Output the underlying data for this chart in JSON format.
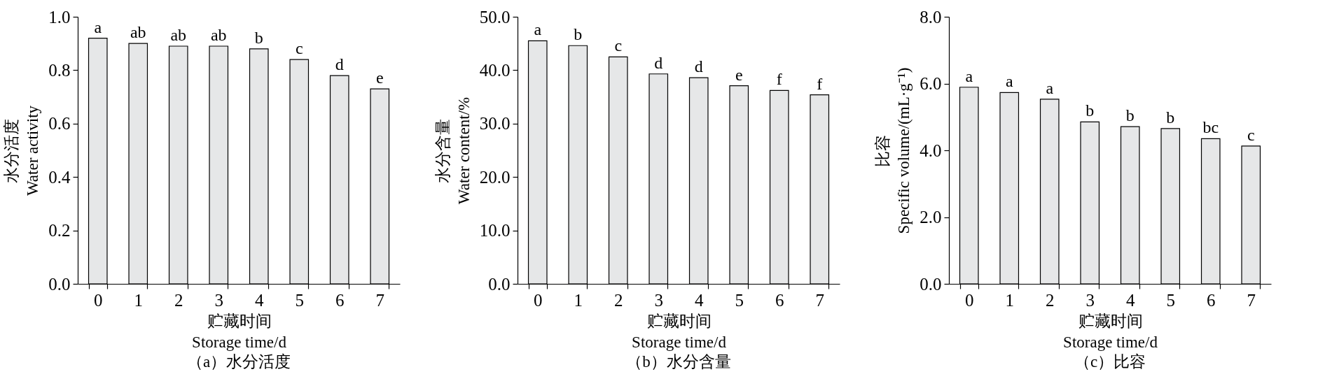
{
  "chart_data": [
    {
      "type": "bar",
      "title": "（a）水分活度",
      "xlabel": "贮藏时间\nStorage time/d",
      "ylabel": "水分活度\nWater activity",
      "categories": [
        "0",
        "1",
        "2",
        "3",
        "4",
        "5",
        "6",
        "7"
      ],
      "values": [
        0.92,
        0.9,
        0.89,
        0.89,
        0.88,
        0.84,
        0.78,
        0.73
      ],
      "value_labels": [
        "a",
        "ab",
        "ab",
        "ab",
        "b",
        "c",
        "d",
        "e"
      ],
      "color": "#e6e7e8",
      "ylim": [
        0,
        1.0
      ],
      "yticks": [
        {
          "value": 0,
          "label": "0.0"
        },
        {
          "value": 0.2,
          "label": "0.2"
        },
        {
          "value": 0.4,
          "label": "0.4"
        },
        {
          "value": 0.6,
          "label": "0.6"
        },
        {
          "value": 0.8,
          "label": "0.8"
        },
        {
          "value": 1.0,
          "label": "1.0"
        }
      ],
      "grid": false
    },
    {
      "type": "bar",
      "title": "（b）水分含量",
      "xlabel": "贮藏时间\nStorage time/d",
      "ylabel": "水分含量\nWater content/%",
      "categories": [
        "0",
        "1",
        "2",
        "3",
        "4",
        "5",
        "6",
        "7"
      ],
      "values": [
        45.5,
        44.6,
        42.5,
        39.3,
        38.6,
        37.1,
        36.2,
        35.4
      ],
      "value_labels": [
        "a",
        "b",
        "c",
        "d",
        "d",
        "e",
        "f",
        "f"
      ],
      "color": "#e6e7e8",
      "ylim": [
        0,
        50
      ],
      "yticks": [
        {
          "value": 0,
          "label": "0.0"
        },
        {
          "value": 10,
          "label": "10.0"
        },
        {
          "value": 20,
          "label": "20.0"
        },
        {
          "value": 30,
          "label": "30.0"
        },
        {
          "value": 40,
          "label": "40.0"
        },
        {
          "value": 50,
          "label": "50.0"
        }
      ],
      "grid": false
    },
    {
      "type": "bar",
      "title": "（c）比容",
      "xlabel": "贮藏时间\nStorage time/d",
      "ylabel": "比容\nSpecific volume/(mL·g⁻¹)",
      "categories": [
        "0",
        "1",
        "2",
        "3",
        "4",
        "5",
        "6",
        "7"
      ],
      "values": [
        5.89,
        5.73,
        5.53,
        4.85,
        4.71,
        4.65,
        4.35,
        4.13
      ],
      "value_labels": [
        "a",
        "a",
        "a",
        "b",
        "b",
        "b",
        "bc",
        "c"
      ],
      "color": "#e6e7e8",
      "ylim": [
        0,
        8
      ],
      "yticks": [
        {
          "value": 0,
          "label": "0.0"
        },
        {
          "value": 2,
          "label": "2.0"
        },
        {
          "value": 4,
          "label": "4.0"
        },
        {
          "value": 6,
          "label": "6.0"
        },
        {
          "value": 8,
          "label": "8.0"
        }
      ],
      "grid": false
    }
  ]
}
